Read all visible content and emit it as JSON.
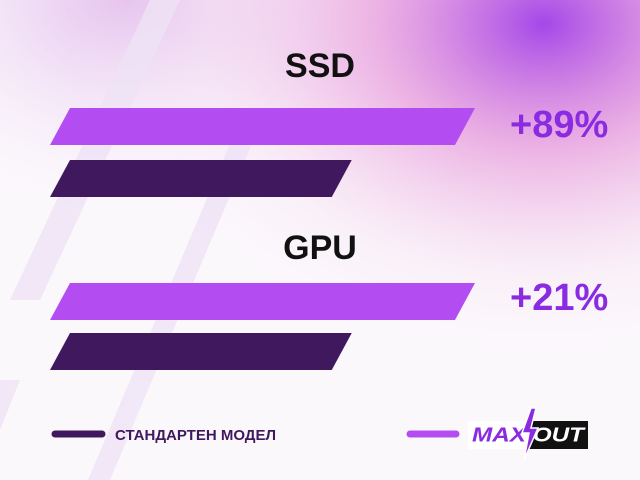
{
  "chart_data": {
    "type": "bar",
    "categories": [
      "SSD",
      "GPU"
    ],
    "series": [
      {
        "name": "СТАНДАРТЕН МОДЕЛ",
        "color": "#40185e",
        "values": [
          71,
          71
        ]
      },
      {
        "name": "MAX OUT",
        "color": "#b34df2",
        "values": [
          100,
          100
        ]
      }
    ],
    "annotations": [
      "+89%",
      "+21%"
    ],
    "annotation_color": "#8a2be2",
    "xlim": [
      0,
      100
    ]
  }
}
